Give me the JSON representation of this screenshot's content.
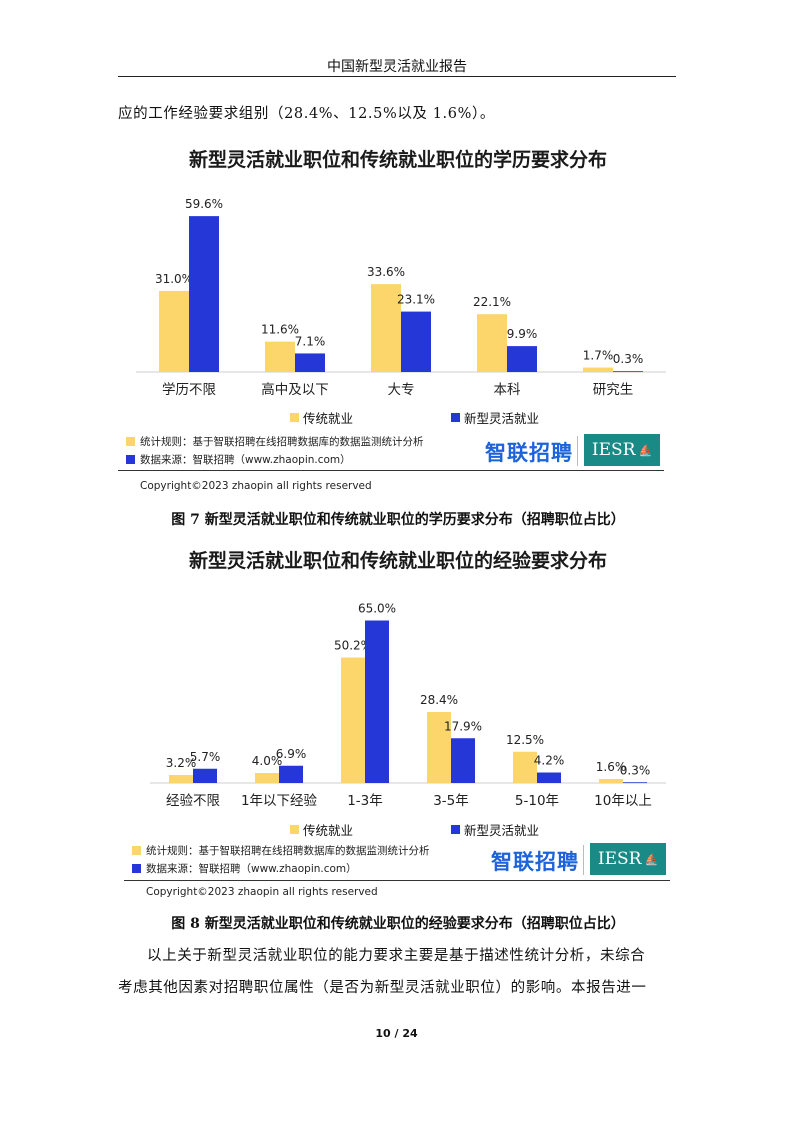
{
  "header": {
    "title": "中国新型灵活就业报告"
  },
  "intro_text": "应的工作经验要求组别（28.4%、12.5%以及 1.6%）。",
  "footnotes": {
    "rule": "统计规则：基于智联招聘在线招聘数据库的数据监测统计分析",
    "source": "数据来源：智联招聘（www.zhaopin.com）",
    "copyright": "Copyright©2023 zhaopin all rights reserved"
  },
  "logos": {
    "zhaopin": "智联招聘",
    "iesr": "IESR"
  },
  "colors": {
    "traditional": "#fcd56b",
    "new": "#2637d8",
    "iesr": "#1a8a86",
    "zhaopin": "#1d63d9"
  },
  "chart_data": [
    {
      "type": "bar",
      "title": "新型灵活就业职位和传统就业职位的学历要求分布",
      "categories": [
        "学历不限",
        "高中及以下",
        "大专",
        "本科",
        "研究生"
      ],
      "series": [
        {
          "name": "传统就业",
          "values": [
            31.0,
            11.6,
            33.6,
            22.1,
            1.7
          ],
          "labels": [
            "31.0%",
            "11.6%",
            "33.6%",
            "22.1%",
            "1.7%"
          ]
        },
        {
          "name": "新型灵活就业",
          "values": [
            59.6,
            7.1,
            23.1,
            9.9,
            0.3
          ],
          "labels": [
            "59.6%",
            "7.1%",
            "23.1%",
            "9.9%",
            "0.3%"
          ]
        }
      ],
      "ylim": [
        0,
        65
      ],
      "legend": "bottom"
    },
    {
      "type": "bar",
      "title": "新型灵活就业职位和传统就业职位的经验要求分布",
      "categories": [
        "经验不限",
        "1年以下经验",
        "1-3年",
        "3-5年",
        "5-10年",
        "10年以上"
      ],
      "series": [
        {
          "name": "传统就业",
          "values": [
            3.2,
            4.0,
            50.2,
            28.4,
            12.5,
            1.6
          ],
          "labels": [
            "3.2%",
            "4.0%",
            "50.2%",
            "28.4%",
            "12.5%",
            "1.6%"
          ]
        },
        {
          "name": "新型灵活就业",
          "values": [
            5.7,
            6.9,
            65.0,
            17.9,
            4.2,
            0.3
          ],
          "labels": [
            "5.7%",
            "6.9%",
            "65.0%",
            "17.9%",
            "4.2%",
            "0.3%"
          ]
        }
      ],
      "ylim": [
        0,
        70
      ],
      "legend": "bottom"
    }
  ],
  "captions": {
    "fig7": "图 7  新型灵活就业职位和传统就业职位的学历要求分布（招聘职位占比）",
    "fig8": "图 8  新型灵活就业职位和传统就业职位的经验要求分布（招聘职位占比）"
  },
  "body_text": {
    "line1": "以上关于新型灵活就业职位的能力要求主要是基于描述性统计分析，未综合",
    "line2": "考虑其他因素对招聘职位属性（是否为新型灵活就业职位）的影响。本报告进一"
  },
  "page_number": "10 / 24"
}
